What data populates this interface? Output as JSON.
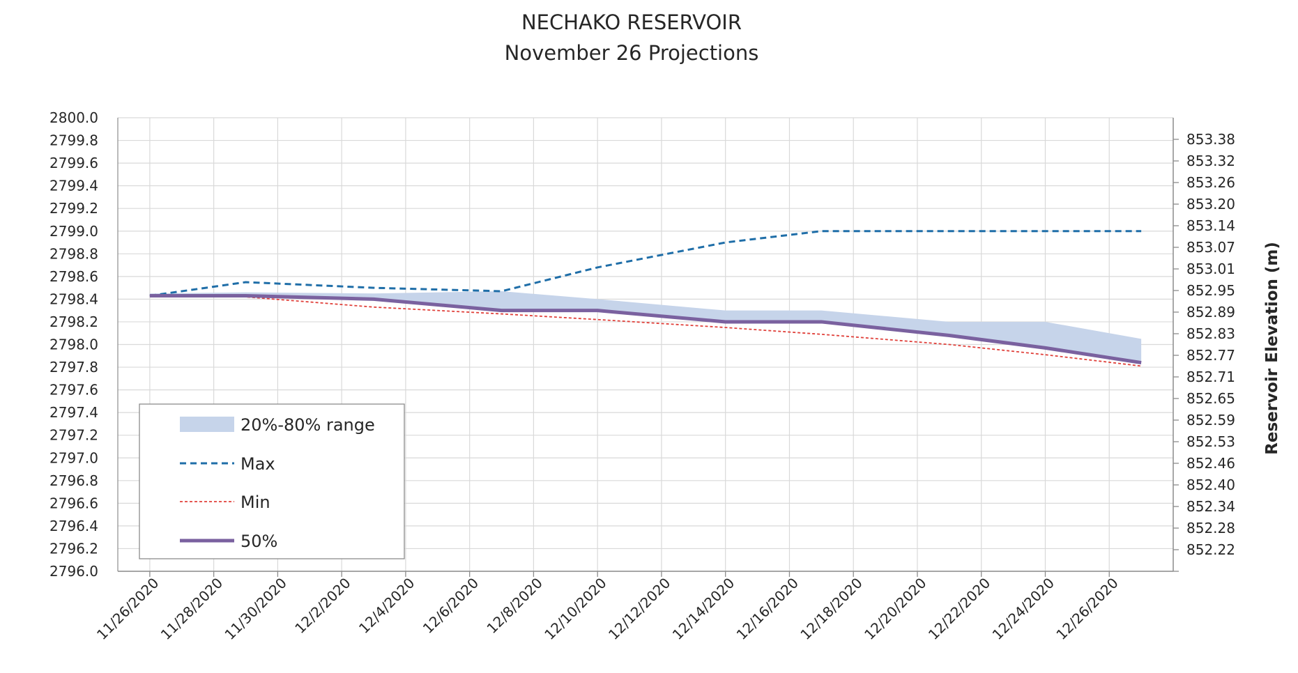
{
  "chart_data": {
    "type": "line",
    "title": "NECHAKO RESERVOIR",
    "subtitle": "November 26 Projections",
    "ylabel_right": "Reservoir Elevation (m)",
    "ylim": [
      2796.0,
      2800.0
    ],
    "y_ticks": [
      "2796.0",
      "2796.2",
      "2796.4",
      "2796.6",
      "2796.8",
      "2797.0",
      "2797.2",
      "2797.4",
      "2797.6",
      "2797.8",
      "2798.0",
      "2798.2",
      "2798.4",
      "2798.6",
      "2798.8",
      "2799.0",
      "2799.2",
      "2799.4",
      "2799.6",
      "2799.8",
      "2800.0"
    ],
    "y2_ticks": [
      "852.22",
      "852.28",
      "852.34",
      "852.40",
      "852.46",
      "852.53",
      "852.59",
      "852.65",
      "852.71",
      "852.77",
      "852.83",
      "852.89",
      "852.95",
      "853.01",
      "853.07",
      "853.14",
      "853.20",
      "853.26",
      "853.32",
      "853.38"
    ],
    "x_ticks": [
      "11/26/2020",
      "11/28/2020",
      "11/30/2020",
      "12/2/2020",
      "12/4/2020",
      "12/6/2020",
      "12/8/2020",
      "12/10/2020",
      "12/12/2020",
      "12/14/2020",
      "12/16/2020",
      "12/18/2020",
      "12/20/2020",
      "12/22/2020",
      "12/24/2020",
      "12/26/2020"
    ],
    "dates": [
      "11/26/2020",
      "11/29/2020",
      "12/3/2020",
      "12/7/2020",
      "12/10/2020",
      "12/14/2020",
      "12/17/2020",
      "12/21/2020",
      "12/24/2020",
      "12/27/2020"
    ],
    "grid": true,
    "legend_position": "lower-left",
    "series": [
      {
        "name": "20%-80% range",
        "kind": "band",
        "color": "#c6d4ea",
        "low": [
          2798.43,
          2798.43,
          2798.4,
          2798.3,
          2798.3,
          2798.2,
          2798.2,
          2798.08,
          2797.97,
          2797.84
        ],
        "high": [
          2798.45,
          2798.46,
          2798.45,
          2798.47,
          2798.4,
          2798.3,
          2798.3,
          2798.2,
          2798.2,
          2798.05
        ]
      },
      {
        "name": "Max",
        "kind": "line",
        "color": "#1f6ea8",
        "dash": "dashed",
        "values": [
          2798.43,
          2798.55,
          2798.5,
          2798.47,
          2798.68,
          2798.9,
          2799.0,
          2799.0,
          2799.0,
          2799.0
        ]
      },
      {
        "name": "Min",
        "kind": "line",
        "color": "#e0403a",
        "dash": "dotted",
        "values": [
          2798.43,
          2798.42,
          2798.33,
          2798.27,
          2798.22,
          2798.15,
          2798.09,
          2798.0,
          2797.91,
          2797.81
        ]
      },
      {
        "name": "50%",
        "kind": "line",
        "color": "#7a619f",
        "dash": "solid",
        "values": [
          2798.43,
          2798.43,
          2798.4,
          2798.3,
          2798.3,
          2798.2,
          2798.2,
          2798.08,
          2797.97,
          2797.84
        ]
      }
    ]
  }
}
